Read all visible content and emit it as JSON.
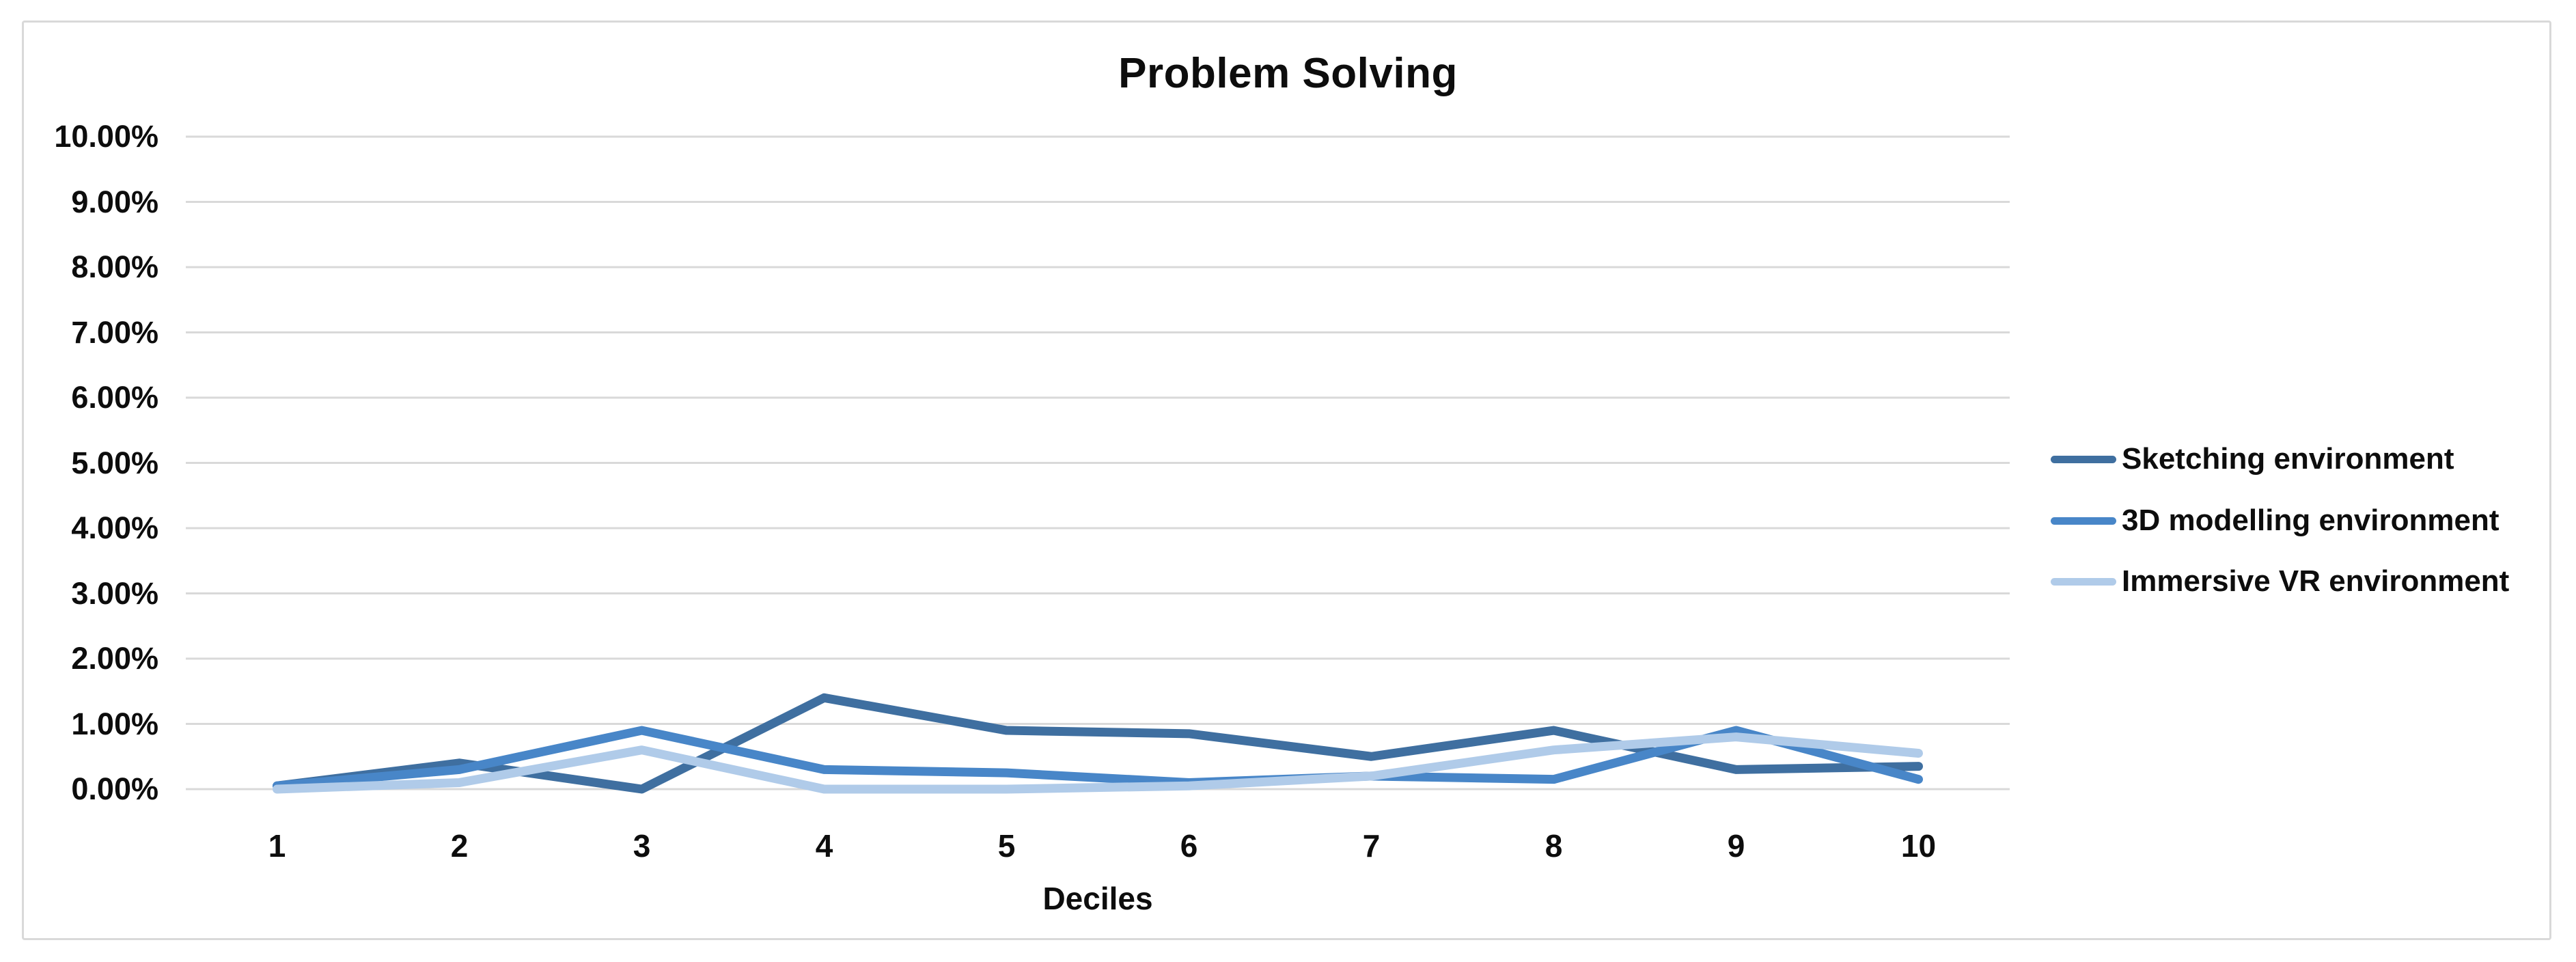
{
  "chart_data": {
    "type": "line",
    "title": "Problem Solving",
    "xlabel": "Deciles",
    "ylabel": "",
    "categories": [
      "1",
      "2",
      "3",
      "4",
      "5",
      "6",
      "7",
      "8",
      "9",
      "10"
    ],
    "y_tick_labels": [
      "0.00%",
      "1.00%",
      "2.00%",
      "3.00%",
      "4.00%",
      "5.00%",
      "6.00%",
      "7.00%",
      "8.00%",
      "9.00%",
      "10.00%"
    ],
    "ylim": [
      0,
      10
    ],
    "grid": true,
    "legend_position": "right",
    "series": [
      {
        "name": "Sketching environment",
        "color": "#3f6fa0",
        "values_pct": [
          0.05,
          0.4,
          0.0,
          1.4,
          0.9,
          0.85,
          0.5,
          0.9,
          0.3,
          0.35
        ]
      },
      {
        "name": "3D modelling environment",
        "color": "#4886c8",
        "values_pct": [
          0.05,
          0.3,
          0.9,
          0.3,
          0.25,
          0.1,
          0.2,
          0.15,
          0.9,
          0.15
        ]
      },
      {
        "name": "Immersive VR environment",
        "color": "#b0cbe9",
        "values_pct": [
          0.0,
          0.1,
          0.6,
          0.0,
          0.0,
          0.05,
          0.2,
          0.6,
          0.8,
          0.55
        ]
      }
    ]
  },
  "colors": {
    "gridline": "#d9d9d9",
    "chart_border": "#d9d9d9",
    "text": "#0d0d0d",
    "background": "#ffffff"
  }
}
